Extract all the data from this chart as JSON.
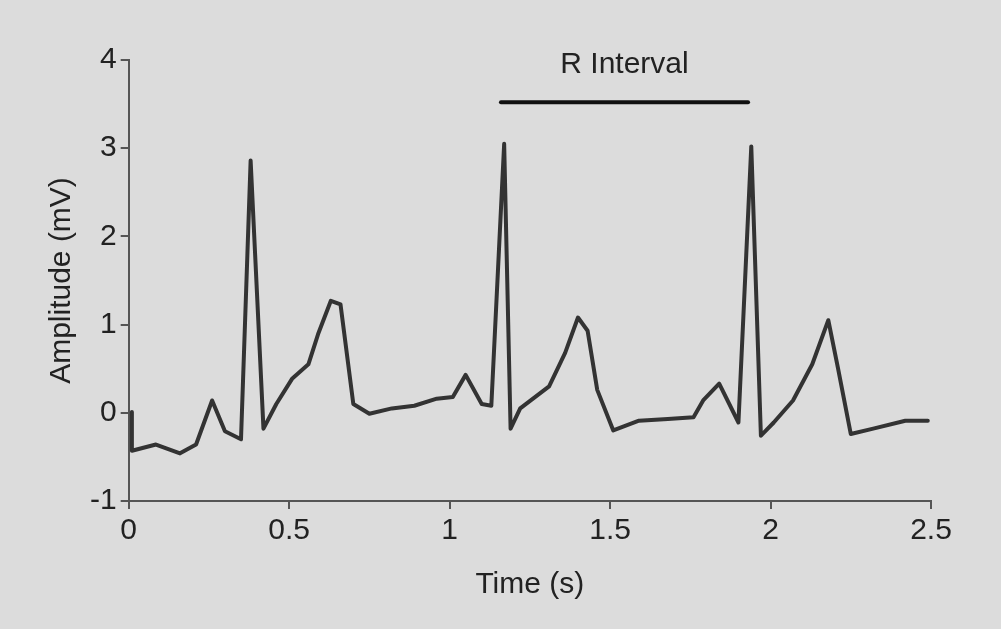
{
  "chart_data": {
    "type": "line",
    "xlabel": "Time (s)",
    "ylabel": "Amplitude (mV)",
    "xlim": [
      0,
      2.5
    ],
    "xticks": [
      0,
      0.5,
      1,
      1.5,
      2,
      2.5
    ],
    "ylim": [
      -1,
      4
    ],
    "yticks": [
      -1,
      0,
      1,
      2,
      3,
      4
    ],
    "grid": false,
    "legend": false,
    "marker": "none",
    "line_style": "solid",
    "series": [
      {
        "color": "#333333",
        "x": [
          0.01,
          0.01,
          0.085,
          0.16,
          0.21,
          0.26,
          0.3,
          0.35,
          0.38,
          0.42,
          0.46,
          0.51,
          0.56,
          0.59,
          0.63,
          0.66,
          0.7,
          0.75,
          0.82,
          0.89,
          0.96,
          1.01,
          1.05,
          1.1,
          1.13,
          1.17,
          1.19,
          1.22,
          1.31,
          1.36,
          1.4,
          1.43,
          1.46,
          1.51,
          1.59,
          1.68,
          1.76,
          1.79,
          1.84,
          1.9,
          1.94,
          1.97,
          2.01,
          2.07,
          2.13,
          2.18,
          2.21,
          2.25,
          2.32,
          2.42,
          2.49
        ],
        "values": [
          0.01,
          -0.43,
          -0.36,
          -0.46,
          -0.36,
          0.14,
          -0.21,
          -0.3,
          2.86,
          -0.18,
          0.1,
          0.39,
          0.55,
          0.89,
          1.27,
          1.23,
          0.1,
          -0.01,
          0.05,
          0.08,
          0.16,
          0.18,
          0.43,
          0.1,
          0.08,
          3.05,
          -0.18,
          0.05,
          0.3,
          0.68,
          1.08,
          0.93,
          0.26,
          -0.2,
          -0.09,
          -0.07,
          -0.05,
          0.14,
          0.33,
          -0.11,
          3.02,
          -0.26,
          -0.11,
          0.14,
          0.55,
          1.05,
          0.51,
          -0.24,
          -0.18,
          -0.09,
          -0.09
        ]
      },
      {
        "name": "R Interval",
        "color": "#111111",
        "x": [
          1.16,
          1.93
        ],
        "values": [
          3.52,
          3.52
        ]
      }
    ]
  }
}
